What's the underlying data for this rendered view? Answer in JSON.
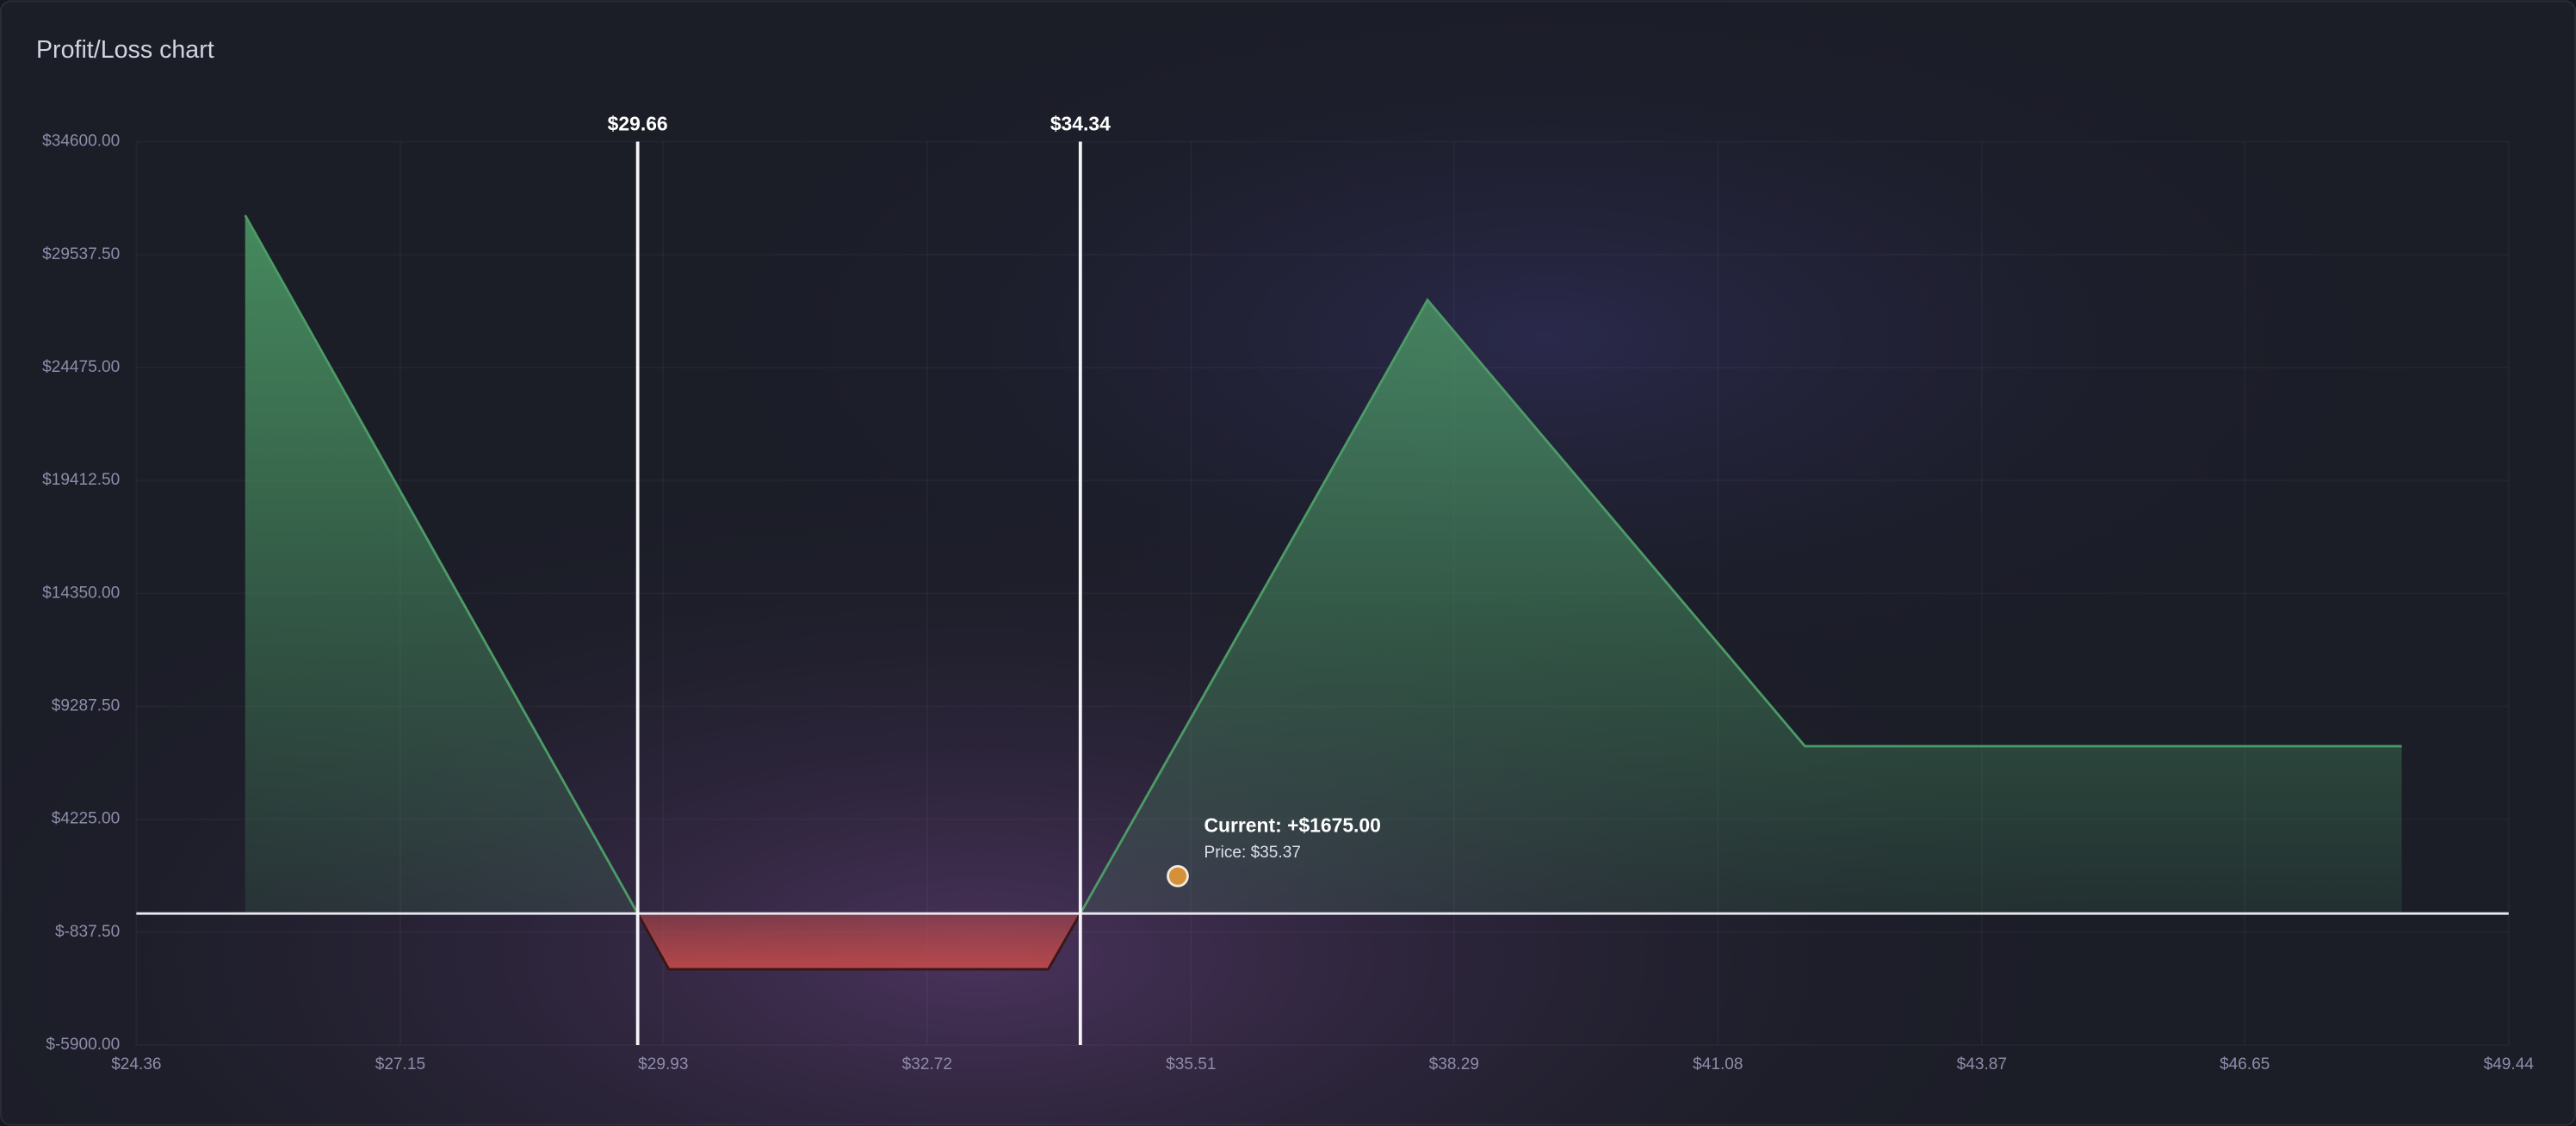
{
  "chart_data": {
    "type": "area",
    "title": "Profit/Loss chart",
    "x": [
      25.51,
      29.66,
      29.99,
      34.0,
      34.34,
      38.01,
      42.0,
      48.31
    ],
    "values": [
      31300,
      0,
      -2500,
      -2500,
      0,
      27500,
      7500,
      7500
    ],
    "color": "#4c9a66",
    "negative_color": "#c04a4a",
    "xlim": [
      24.36,
      49.44
    ],
    "xticks": [
      {
        "value": 24.36,
        "label": "$24.36"
      },
      {
        "value": 27.15,
        "label": "$27.15"
      },
      {
        "value": 29.93,
        "label": "$29.93"
      },
      {
        "value": 32.72,
        "label": "$32.72"
      },
      {
        "value": 35.51,
        "label": "$35.51"
      },
      {
        "value": 38.29,
        "label": "$38.29"
      },
      {
        "value": 41.08,
        "label": "$41.08"
      },
      {
        "value": 43.87,
        "label": "$43.87"
      },
      {
        "value": 46.65,
        "label": "$46.65"
      },
      {
        "value": 49.44,
        "label": "$49.44"
      }
    ],
    "ylim": [
      -5900,
      34600
    ],
    "yticks": [
      {
        "value": -5900,
        "label": "$-5900.00"
      },
      {
        "value": -837.5,
        "label": "$-837.50"
      },
      {
        "value": 4225,
        "label": "$4225.00"
      },
      {
        "value": 9287.5,
        "label": "$9287.50"
      },
      {
        "value": 14350,
        "label": "$14350.00"
      },
      {
        "value": 19412.5,
        "label": "$19412.50"
      },
      {
        "value": 24475,
        "label": "$24475.00"
      },
      {
        "value": 29537.5,
        "label": "$29537.50"
      },
      {
        "value": 34600,
        "label": "$34600.00"
      }
    ],
    "grid": true,
    "breakevens": [
      {
        "value": 29.66,
        "label": "$29.66"
      },
      {
        "value": 34.34,
        "label": "$34.34"
      }
    ],
    "current": {
      "x": 35.37,
      "y": 1675,
      "label": "Current: +$1675.00",
      "price_label": "Price: $35.37"
    }
  }
}
